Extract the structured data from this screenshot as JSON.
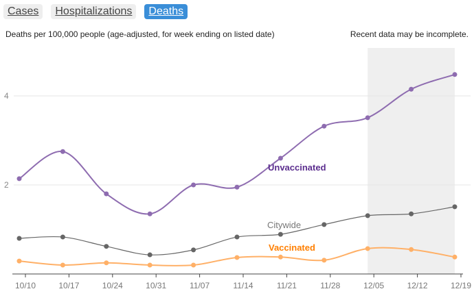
{
  "tabs": [
    {
      "label": "Cases",
      "active": false
    },
    {
      "label": "Hospitalizations",
      "active": false
    },
    {
      "label": "Deaths",
      "active": true
    }
  ],
  "subtitle": "Deaths per 100,000 people (age-adjusted, for week ending on listed date)",
  "note": "Recent data may be incomplete.",
  "chart_data": {
    "type": "line",
    "x": [
      "10/10",
      "10/17",
      "10/24",
      "10/31",
      "11/07",
      "11/14",
      "11/21",
      "11/28",
      "12/05",
      "12/12",
      "12/19"
    ],
    "yticks": [
      2,
      4
    ],
    "ylim": [
      0,
      5.1
    ],
    "grid": true,
    "incomplete_shaded_range": [
      "12/05",
      "12/19"
    ],
    "series": [
      {
        "name": "Unvaccinated",
        "color": "#8e6cb0",
        "label_color": "#5b2d8e",
        "values": [
          2.14,
          2.75,
          1.8,
          1.35,
          2.0,
          1.95,
          2.6,
          3.32,
          3.51,
          4.15,
          4.48
        ]
      },
      {
        "name": "Citywide",
        "color": "#666666",
        "label_color": "#777777",
        "values": [
          0.8,
          0.83,
          0.62,
          0.43,
          0.54,
          0.83,
          0.89,
          1.11,
          1.31,
          1.35,
          1.51
        ]
      },
      {
        "name": "Vaccinated",
        "color": "#ffb067",
        "label_color": "#ff7f00",
        "values": [
          0.29,
          0.2,
          0.25,
          0.2,
          0.2,
          0.37,
          0.38,
          0.31,
          0.57,
          0.55,
          0.38
        ]
      }
    ]
  }
}
